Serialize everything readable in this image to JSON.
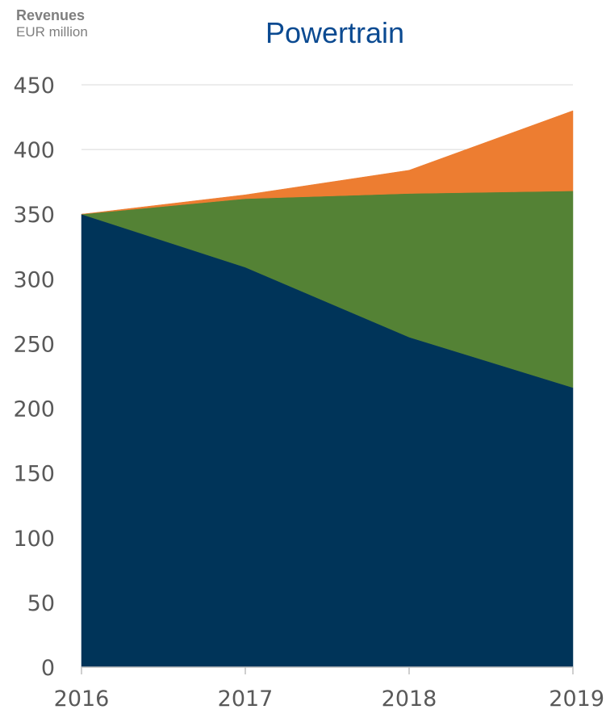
{
  "chart_data": {
    "type": "area",
    "stacked": true,
    "title": "Powertrain",
    "ylabel": "Revenues",
    "ylabel_unit": "EUR million",
    "xlabel": "",
    "x": [
      "2016",
      "2017",
      "2018",
      "2019"
    ],
    "ylim": [
      0,
      450
    ],
    "yticks": [
      0,
      50,
      100,
      150,
      200,
      250,
      300,
      350,
      400,
      450
    ],
    "grid": true,
    "legend": "none",
    "series": [
      {
        "values": [
          350,
          309,
          255,
          216
        ],
        "color": "#003459"
      },
      {
        "values": [
          0,
          53,
          111,
          152
        ],
        "color": "#548235"
      },
      {
        "values": [
          0,
          3,
          18,
          62
        ],
        "color": "#ed7d31"
      }
    ]
  }
}
